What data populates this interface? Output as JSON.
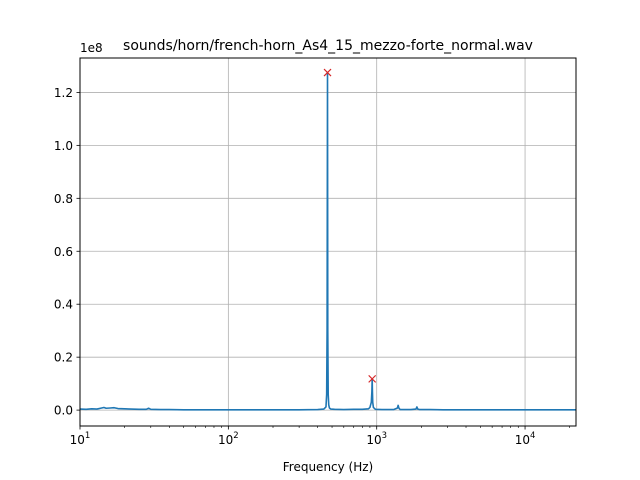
{
  "chart_data": {
    "type": "line",
    "title": "sounds/horn/french-horn_As4_15_mezzo-forte_normal.wav",
    "xlabel": "Frequency (Hz)",
    "ylabel": "",
    "xscale": "log",
    "xlim": [
      10,
      22050
    ],
    "ylim": [
      -0.06,
      1.33
    ],
    "y_offset_label": "1e8",
    "grid": true,
    "line_color": "#1f77b4",
    "marker_color": "#d62728",
    "x_ticks": [
      {
        "value": 10,
        "base": "10",
        "exp": "1"
      },
      {
        "value": 100,
        "base": "10",
        "exp": "2"
      },
      {
        "value": 1000,
        "base": "10",
        "exp": "3"
      },
      {
        "value": 10000,
        "base": "10",
        "exp": "4"
      }
    ],
    "y_ticks": [
      {
        "value": 0.0,
        "label": "0.0"
      },
      {
        "value": 0.2,
        "label": "0.2"
      },
      {
        "value": 0.4,
        "label": "0.4"
      },
      {
        "value": 0.6,
        "label": "0.6"
      },
      {
        "value": 0.8,
        "label": "0.8"
      },
      {
        "value": 1.0,
        "label": "1.0"
      },
      {
        "value": 1.2,
        "label": "1.2"
      }
    ],
    "series": [
      {
        "x": [
          10,
          11,
          12,
          13,
          14,
          14.5,
          15,
          16,
          17,
          18,
          20,
          22,
          25,
          28,
          29,
          30,
          35,
          40,
          50,
          60,
          80,
          100,
          150,
          200,
          300,
          400,
          440,
          455,
          460,
          463,
          466,
          468,
          471,
          475,
          480,
          490,
          520,
          600,
          700,
          800,
          880,
          900,
          920,
          928,
          932,
          936,
          940,
          950,
          980,
          1100,
          1300,
          1380,
          1395,
          1410,
          1440,
          1700,
          1840,
          1866,
          1890,
          1950,
          2100,
          2300,
          2800,
          3300,
          3800,
          5000,
          7000,
          10000,
          15000,
          22050
        ],
        "y": [
          0.004,
          0.003,
          0.005,
          0.004,
          0.008,
          0.01,
          0.007,
          0.008,
          0.009,
          0.006,
          0.005,
          0.004,
          0.003,
          0.003,
          0.007,
          0.003,
          0.002,
          0.002,
          0.001,
          0.001,
          0.001,
          0.001,
          0.001,
          0.001,
          0.001,
          0.002,
          0.004,
          0.012,
          0.06,
          0.3,
          1.275,
          0.3,
          0.06,
          0.02,
          0.008,
          0.004,
          0.003,
          0.002,
          0.003,
          0.003,
          0.005,
          0.01,
          0.03,
          0.07,
          0.118,
          0.07,
          0.03,
          0.01,
          0.003,
          0.002,
          0.002,
          0.008,
          0.018,
          0.008,
          0.002,
          0.002,
          0.004,
          0.012,
          0.004,
          0.002,
          0.002,
          0.002,
          0.001,
          0.001,
          0.001,
          0.001,
          0.001,
          0.001,
          0.001,
          0.001
        ]
      }
    ],
    "peaks": [
      {
        "x": 466,
        "y": 1.275
      },
      {
        "x": 932,
        "y": 0.118
      }
    ]
  }
}
